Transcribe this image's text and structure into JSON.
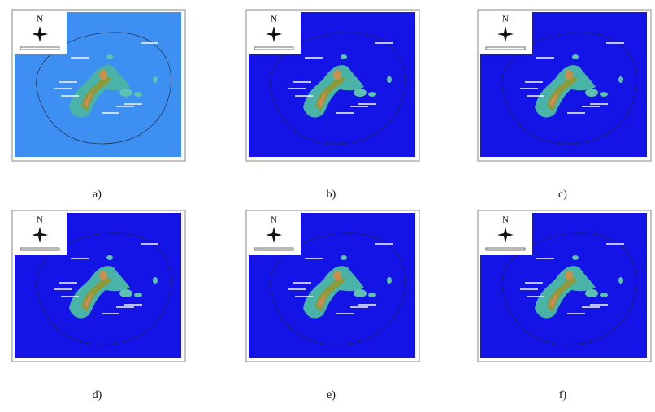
{
  "figure": {
    "panels": [
      {
        "label": "a)",
        "north": "N",
        "sea_color": "#3d8ff2"
      },
      {
        "label": "b)",
        "north": "N",
        "sea_color": "#1414e6"
      },
      {
        "label": "c)",
        "north": "N",
        "sea_color": "#1414e6"
      },
      {
        "label": "d)",
        "north": "N",
        "sea_color": "#1414e6"
      },
      {
        "label": "e)",
        "north": "N",
        "sea_color": "#1414e6"
      },
      {
        "label": "f)",
        "north": "N",
        "sea_color": "#1414e6"
      }
    ]
  }
}
